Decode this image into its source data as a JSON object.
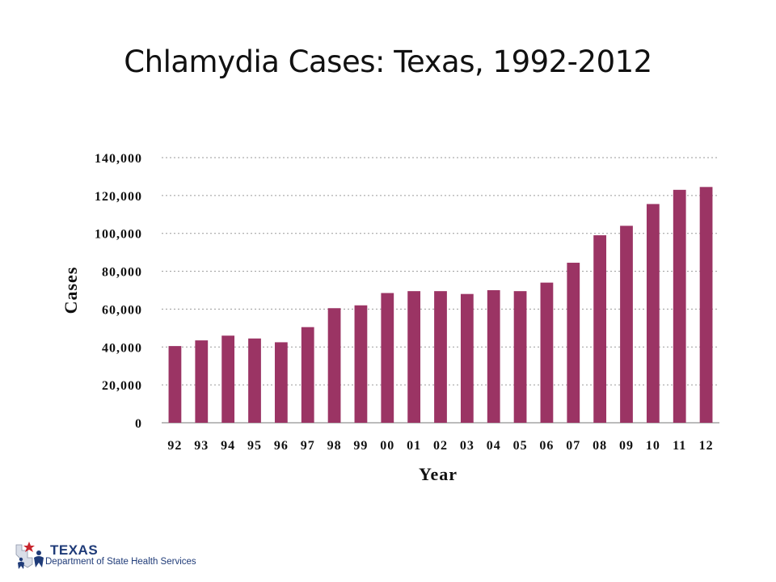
{
  "slide": {
    "title": "Chlamydia Cases: Texas, 1992-2012"
  },
  "logo": {
    "word": "TEXAS",
    "subtitle": "Department of State Health Services"
  },
  "colors": {
    "bar": "#9b3464",
    "grid": "#9a9a9a",
    "axis": "#777777",
    "logo_blue": "#1f3b78",
    "logo_red": "#c8262e"
  },
  "chart_data": {
    "type": "bar",
    "title": "",
    "xlabel": "Year",
    "ylabel": "Cases",
    "categories": [
      "92",
      "93",
      "94",
      "95",
      "96",
      "97",
      "98",
      "99",
      "00",
      "01",
      "02",
      "03",
      "04",
      "05",
      "06",
      "07",
      "08",
      "09",
      "10",
      "11",
      "12"
    ],
    "values": [
      40500,
      43500,
      46000,
      44500,
      42500,
      50500,
      60500,
      62000,
      68500,
      69500,
      69500,
      68000,
      70000,
      69500,
      74000,
      84500,
      99000,
      104000,
      115500,
      123000,
      124500
    ],
    "ylim": [
      0,
      140000
    ],
    "yticks": [
      0,
      20000,
      40000,
      60000,
      80000,
      100000,
      120000,
      140000
    ],
    "ytick_labels": [
      "0",
      "20,000",
      "40,000",
      "60,000",
      "80,000",
      "100,000",
      "120,000",
      "140,000"
    ],
    "grid": true,
    "legend": "none"
  }
}
